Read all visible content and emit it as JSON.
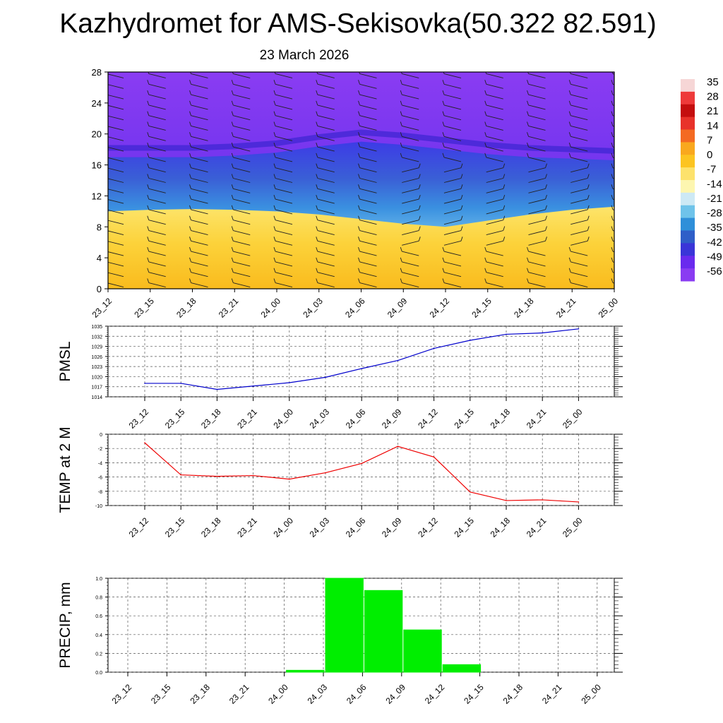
{
  "title": "Kazhydromet for AMS-Sekisovka(50.322 82.591)",
  "subtitle": "23 March 2026",
  "time_labels": [
    "23_12",
    "23_15",
    "23_18",
    "23_21",
    "24_00",
    "24_03",
    "24_06",
    "24_09",
    "24_12",
    "24_15",
    "24_18",
    "24_21",
    "25_00"
  ],
  "chart_data": [
    {
      "type": "heatmap",
      "name": "temperature cross-section with wind barbs",
      "x": [
        "23_12",
        "23_15",
        "23_18",
        "23_21",
        "24_00",
        "24_03",
        "24_06",
        "24_09",
        "24_12",
        "24_15",
        "24_18",
        "24_21",
        "25_00"
      ],
      "ylim": [
        0,
        28
      ],
      "yticks": [
        0,
        4,
        8,
        12,
        16,
        20,
        24,
        28
      ],
      "colorbar_labels": [
        "35",
        "28",
        "21",
        "14",
        "7",
        "0",
        "-7",
        "-14",
        "-21",
        "-28",
        "-35",
        "-42",
        "-49",
        "-56"
      ],
      "colorbar_colors": [
        "#f6d6d6",
        "#ee3a3a",
        "#c40e0e",
        "#e8322a",
        "#f46a22",
        "#f9a81e",
        "#fcc421",
        "#fde26c",
        "#fdf6b0",
        "#cde9f5",
        "#6fc3ea",
        "#2f8fd9",
        "#2f5ec8",
        "#3a35d8",
        "#6a2aee",
        "#8a3cf2"
      ],
      "freezing_level_km": [
        10,
        10.2,
        10.3,
        10.2,
        10.0,
        9.6,
        9.0,
        8.4,
        8.0,
        8.8,
        9.6,
        10.2,
        10.6
      ],
      "tropopause_km": [
        17.0,
        17.0,
        17.0,
        17.2,
        17.6,
        18.4,
        19.0,
        18.6,
        18.0,
        17.4,
        17.0,
        16.8,
        16.6
      ]
    },
    {
      "type": "line",
      "ylabel": "PMSL",
      "x": [
        "23_12",
        "23_15",
        "23_18",
        "23_21",
        "24_00",
        "24_03",
        "24_06",
        "24_09",
        "24_12",
        "24_15",
        "24_18",
        "24_21",
        "25_00"
      ],
      "values": [
        1018.0,
        1018.0,
        1016.2,
        1017.2,
        1018.2,
        1019.8,
        1022.4,
        1024.8,
        1028.4,
        1030.8,
        1032.6,
        1033.0,
        1034.2
      ],
      "ylim": [
        1014,
        1035
      ],
      "yticks": [
        "1014",
        "1017",
        "1020",
        "1023",
        "1026",
        "1029",
        "1032",
        "1035"
      ],
      "color": "#0000cc"
    },
    {
      "type": "line",
      "ylabel": "TEMP at 2 M",
      "x": [
        "23_12",
        "23_15",
        "23_18",
        "23_21",
        "24_00",
        "24_03",
        "24_06",
        "24_09",
        "24_12",
        "24_15",
        "24_18",
        "24_21",
        "25_00"
      ],
      "values": [
        -1.2,
        -5.7,
        -5.9,
        -5.8,
        -6.3,
        -5.4,
        -4.1,
        -1.7,
        -3.2,
        -8.1,
        -9.3,
        -9.2,
        -9.5
      ],
      "ylim": [
        -10,
        0
      ],
      "yticks": [
        "-10",
        "-8",
        "-6",
        "-4",
        "-2",
        "0"
      ],
      "color": "#ee0000"
    },
    {
      "type": "bar",
      "ylabel": "PRECIP, mm",
      "x": [
        "23_12",
        "23_15",
        "23_18",
        "23_21",
        "24_00",
        "24_03",
        "24_06",
        "24_09",
        "24_12",
        "24_15",
        "24_18",
        "24_21",
        "25_00"
      ],
      "values": [
        0,
        0,
        0,
        0,
        0.02,
        1.0,
        0.87,
        0.45,
        0.08,
        0,
        0,
        0,
        0
      ],
      "ylim": [
        0,
        1.0
      ],
      "yticks": [
        "0.0",
        "0.2",
        "0.4",
        "0.6",
        "0.8",
        "1.0"
      ],
      "color": "#00ee00"
    }
  ]
}
